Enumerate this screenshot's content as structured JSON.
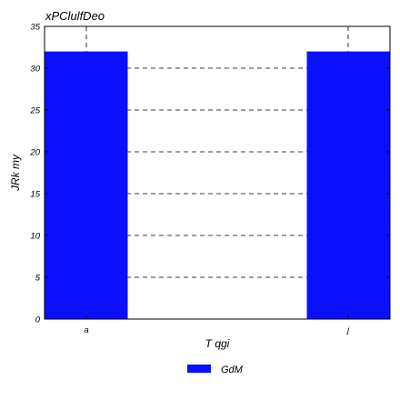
{
  "chart_data": {
    "type": "bar",
    "title": "xPClulfDeo",
    "xlabel": "T qgi",
    "ylabel": "JRk   my",
    "categories": [
      "a",
      "j"
    ],
    "series": [
      {
        "name": "GdM",
        "values": [
          32,
          32
        ],
        "color": "#0a10ff"
      }
    ],
    "ylim": [
      0,
      35
    ],
    "yticks": [
      0,
      5,
      10,
      15,
      20,
      25,
      30,
      35
    ],
    "grid": "dashed",
    "legend_position": "bottom-center"
  }
}
